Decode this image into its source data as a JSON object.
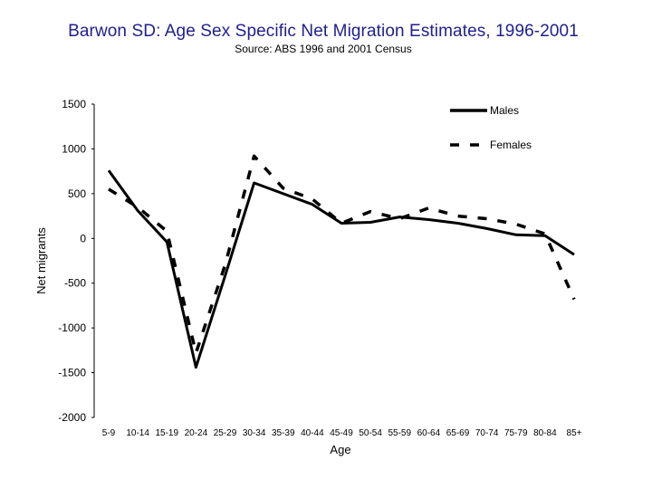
{
  "chart_data": {
    "type": "line",
    "title": "Barwon SD: Age Sex Specific Net Migration Estimates, 1996-2001",
    "subtitle": "Source: ABS 1996 and 2001 Census",
    "xlabel": "Age",
    "ylabel": "Net migrants",
    "ylim": [
      -2000,
      1500
    ],
    "yticks": [
      1500,
      1000,
      500,
      0,
      -500,
      -1000,
      -1500,
      -2000
    ],
    "ytick_labels": [
      "1500",
      "1000",
      "500",
      "0",
      "-500",
      "-1000",
      "-1500",
      "-2000"
    ],
    "grid": false,
    "legend_position": "top-right",
    "categories": [
      "5-9",
      "10-14",
      "15-19",
      "20-24",
      "25-29",
      "30-34",
      "35-39",
      "40-44",
      "45-49",
      "50-54",
      "55-59",
      "60-64",
      "65-69",
      "70-74",
      "75-79",
      "80-84",
      "85+"
    ],
    "series": [
      {
        "name": "Males",
        "style": "solid",
        "color": "#000000",
        "values": [
          760,
          310,
          -40,
          -1440,
          -420,
          620,
          500,
          380,
          170,
          180,
          240,
          210,
          170,
          110,
          40,
          30,
          -180
        ]
      },
      {
        "name": "Females",
        "style": "dashed",
        "color": "#000000",
        "values": [
          550,
          350,
          80,
          -1280,
          -300,
          920,
          560,
          440,
          170,
          300,
          220,
          340,
          250,
          220,
          160,
          50,
          -680
        ]
      }
    ]
  }
}
